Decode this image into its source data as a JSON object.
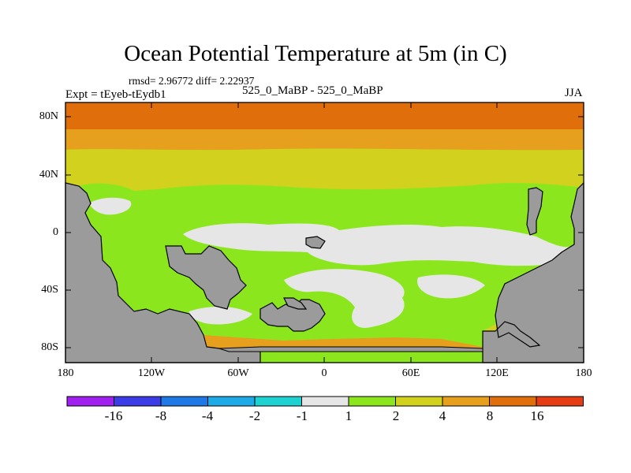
{
  "title": "Ocean Potential Temperature at 5m (in C)",
  "stats": "rmsd= 2.96772 diff= 2.22937",
  "left_label": "Expt = tEyeb-tEydb1",
  "center_label": "525_0_MaBP - 525_0_MaBP",
  "right_label": "JJA",
  "y_ticks": [
    "80N",
    "40N",
    "0",
    "40S",
    "80S"
  ],
  "x_ticks": [
    "180",
    "120W",
    "60W",
    "0",
    "60E",
    "120E",
    "180"
  ],
  "colorbar": {
    "colors": [
      "#a020f0",
      "#3c3ce6",
      "#1e78e6",
      "#1eaae6",
      "#1ed2d2",
      "#e6e6e6",
      "#8ce61e",
      "#d2d21e",
      "#e6a01e",
      "#e06e0a",
      "#e63c14"
    ],
    "labels": [
      "-16",
      "-8",
      "-4",
      "-2",
      "-1",
      "1",
      "2",
      "4",
      "8",
      "16"
    ]
  }
}
